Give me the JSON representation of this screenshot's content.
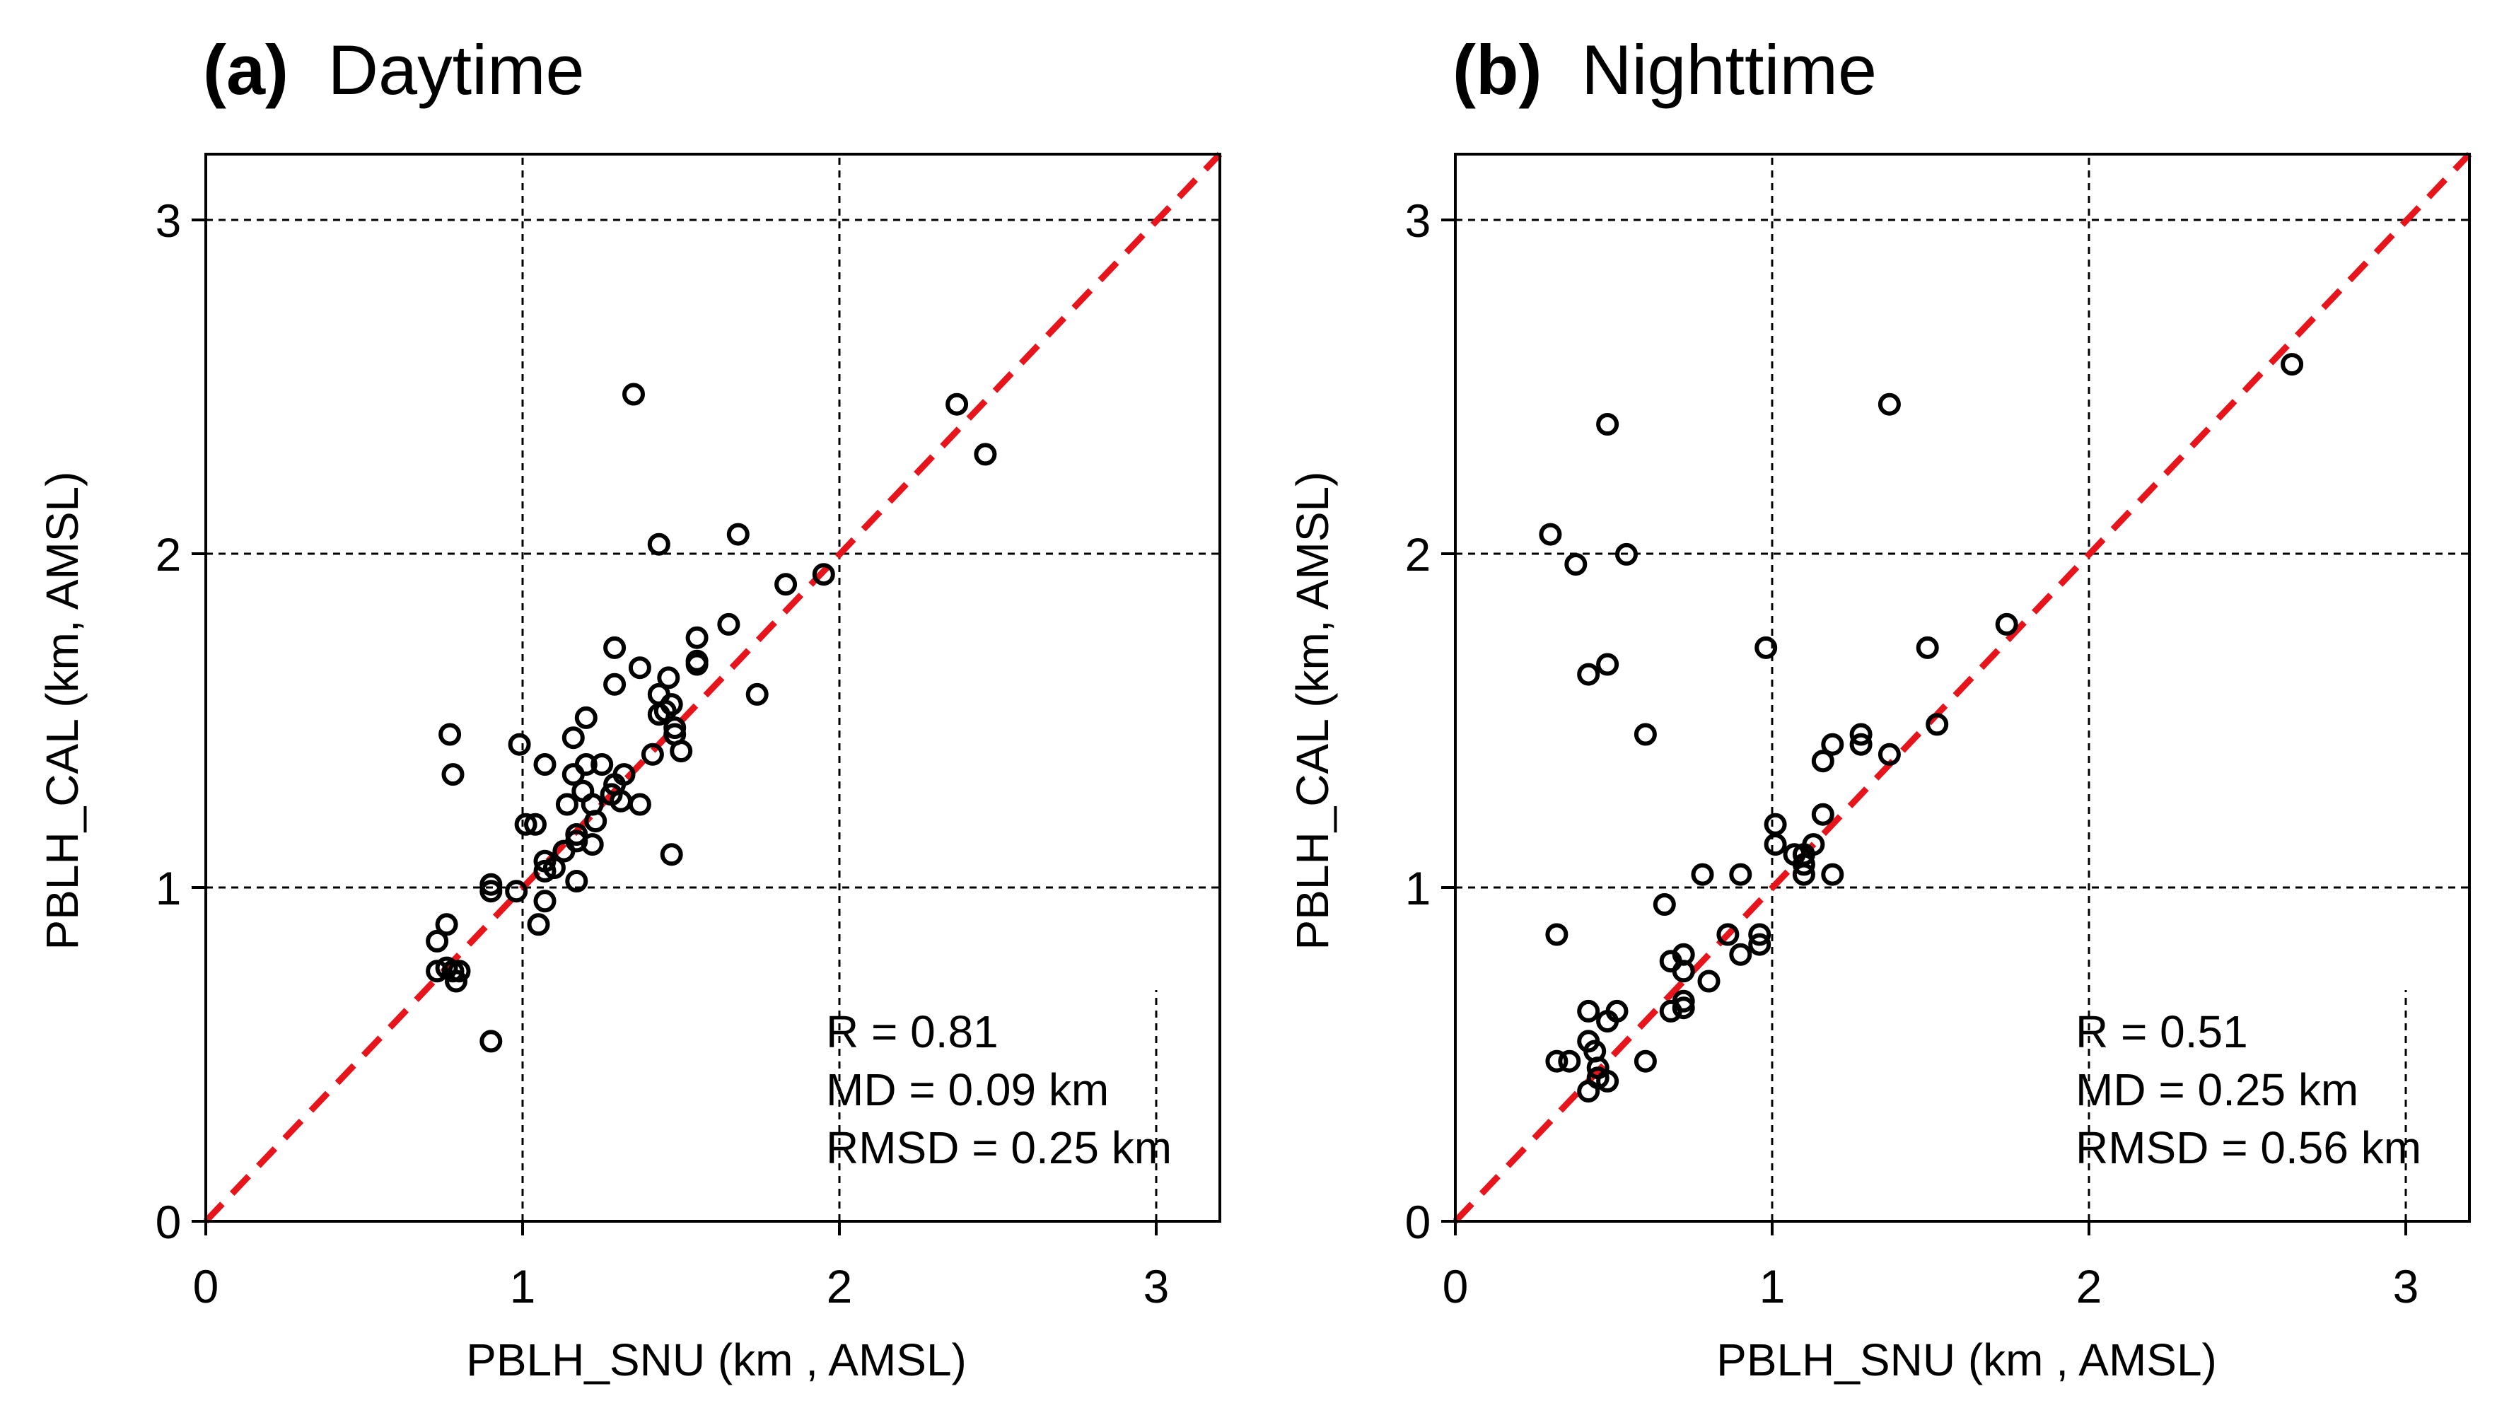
{
  "chart_data": [
    {
      "type": "scatter",
      "panel_tag": "(a)",
      "title": "Daytime",
      "xlabel": "PBLH_SNU (km , AMSL)",
      "ylabel": "PBLH_CAL (km, AMSL)",
      "xlim": [
        0,
        3.2
      ],
      "ylim": [
        0,
        3.2
      ],
      "xticks": [
        "0",
        "1",
        "2",
        "3"
      ],
      "yticks": [
        "0",
        "1",
        "2",
        "3"
      ],
      "grid": true,
      "reference_line": "1:1",
      "reference_color": "#e8141c",
      "stats": [
        "R = 0.81",
        "MD = 0.09 km",
        "RMSD = 0.25 km"
      ],
      "points": [
        [
          0.73,
          0.84
        ],
        [
          0.73,
          0.75
        ],
        [
          0.76,
          0.89
        ],
        [
          0.76,
          0.76
        ],
        [
          0.78,
          0.75
        ],
        [
          0.79,
          0.72
        ],
        [
          0.8,
          0.75
        ],
        [
          0.77,
          1.46
        ],
        [
          0.78,
          1.34
        ],
        [
          0.9,
          1.01
        ],
        [
          0.9,
          0.99
        ],
        [
          0.9,
          0.54
        ],
        [
          0.98,
          0.99
        ],
        [
          0.99,
          1.43
        ],
        [
          1.01,
          1.19
        ],
        [
          1.04,
          1.19
        ],
        [
          1.05,
          0.89
        ],
        [
          1.07,
          1.08
        ],
        [
          1.07,
          1.05
        ],
        [
          1.07,
          0.96
        ],
        [
          1.07,
          1.37
        ],
        [
          1.1,
          1.06
        ],
        [
          1.13,
          1.11
        ],
        [
          1.14,
          1.25
        ],
        [
          1.16,
          1.45
        ],
        [
          1.16,
          1.34
        ],
        [
          1.17,
          1.16
        ],
        [
          1.17,
          1.14
        ],
        [
          1.17,
          1.02
        ],
        [
          1.19,
          1.29
        ],
        [
          1.2,
          1.51
        ],
        [
          1.2,
          1.37
        ],
        [
          1.22,
          1.25
        ],
        [
          1.22,
          1.13
        ],
        [
          1.23,
          1.2
        ],
        [
          1.25,
          1.37
        ],
        [
          1.28,
          1.28
        ],
        [
          1.29,
          1.31
        ],
        [
          1.29,
          1.61
        ],
        [
          1.29,
          1.72
        ],
        [
          1.31,
          1.26
        ],
        [
          1.32,
          1.34
        ],
        [
          1.35,
          2.48
        ],
        [
          1.37,
          1.66
        ],
        [
          1.37,
          1.25
        ],
        [
          1.41,
          1.4
        ],
        [
          1.43,
          1.58
        ],
        [
          1.43,
          1.52
        ],
        [
          1.43,
          2.03
        ],
        [
          1.45,
          1.53
        ],
        [
          1.46,
          1.63
        ],
        [
          1.47,
          1.55
        ],
        [
          1.47,
          1.1
        ],
        [
          1.48,
          1.46
        ],
        [
          1.48,
          1.48
        ],
        [
          1.5,
          1.41
        ],
        [
          1.55,
          1.75
        ],
        [
          1.55,
          1.67
        ],
        [
          1.55,
          1.68
        ],
        [
          1.65,
          1.79
        ],
        [
          1.68,
          2.06
        ],
        [
          1.74,
          1.58
        ],
        [
          1.83,
          1.91
        ],
        [
          1.95,
          1.94
        ],
        [
          2.37,
          2.45
        ],
        [
          2.46,
          2.3
        ]
      ]
    },
    {
      "type": "scatter",
      "panel_tag": "(b)",
      "title": "Nighttime",
      "xlabel": "PBLH_SNU (km , AMSL)",
      "ylabel": "PBLH_CAL (km, AMSL)",
      "xlim": [
        0,
        3.2
      ],
      "ylim": [
        0,
        3.2
      ],
      "xticks": [
        "0",
        "1",
        "2",
        "3"
      ],
      "yticks": [
        "0",
        "1",
        "2",
        "3"
      ],
      "grid": true,
      "reference_line": "1:1",
      "reference_color": "#e8141c",
      "stats": [
        "R = 0.51",
        "MD = 0.25 km",
        "RMSD = 0.56 km"
      ],
      "points": [
        [
          0.3,
          2.06
        ],
        [
          0.32,
          0.86
        ],
        [
          0.32,
          0.48
        ],
        [
          0.36,
          0.48
        ],
        [
          0.38,
          1.97
        ],
        [
          0.42,
          1.64
        ],
        [
          0.42,
          0.63
        ],
        [
          0.42,
          0.54
        ],
        [
          0.42,
          0.39
        ],
        [
          0.44,
          0.51
        ],
        [
          0.45,
          0.46
        ],
        [
          0.45,
          0.43
        ],
        [
          0.48,
          2.39
        ],
        [
          0.48,
          1.67
        ],
        [
          0.48,
          0.6
        ],
        [
          0.48,
          0.42
        ],
        [
          0.51,
          0.63
        ],
        [
          0.54,
          2.0
        ],
        [
          0.6,
          1.46
        ],
        [
          0.6,
          0.48
        ],
        [
          0.66,
          0.95
        ],
        [
          0.68,
          0.78
        ],
        [
          0.68,
          0.63
        ],
        [
          0.72,
          0.8
        ],
        [
          0.72,
          0.75
        ],
        [
          0.72,
          0.66
        ],
        [
          0.72,
          0.64
        ],
        [
          0.78,
          1.04
        ],
        [
          0.8,
          0.72
        ],
        [
          0.86,
          0.86
        ],
        [
          0.9,
          1.04
        ],
        [
          0.9,
          0.8
        ],
        [
          0.96,
          0.86
        ],
        [
          0.96,
          0.83
        ],
        [
          0.98,
          1.72
        ],
        [
          1.01,
          1.19
        ],
        [
          1.01,
          1.13
        ],
        [
          1.07,
          1.1
        ],
        [
          1.1,
          1.04
        ],
        [
          1.1,
          1.07
        ],
        [
          1.1,
          1.1
        ],
        [
          1.13,
          1.13
        ],
        [
          1.16,
          1.22
        ],
        [
          1.16,
          1.38
        ],
        [
          1.19,
          1.43
        ],
        [
          1.19,
          1.04
        ],
        [
          1.28,
          1.43
        ],
        [
          1.28,
          1.46
        ],
        [
          1.37,
          2.45
        ],
        [
          1.37,
          1.4
        ],
        [
          1.49,
          1.72
        ],
        [
          1.52,
          1.49
        ],
        [
          1.74,
          1.79
        ],
        [
          2.64,
          2.57
        ]
      ]
    }
  ]
}
